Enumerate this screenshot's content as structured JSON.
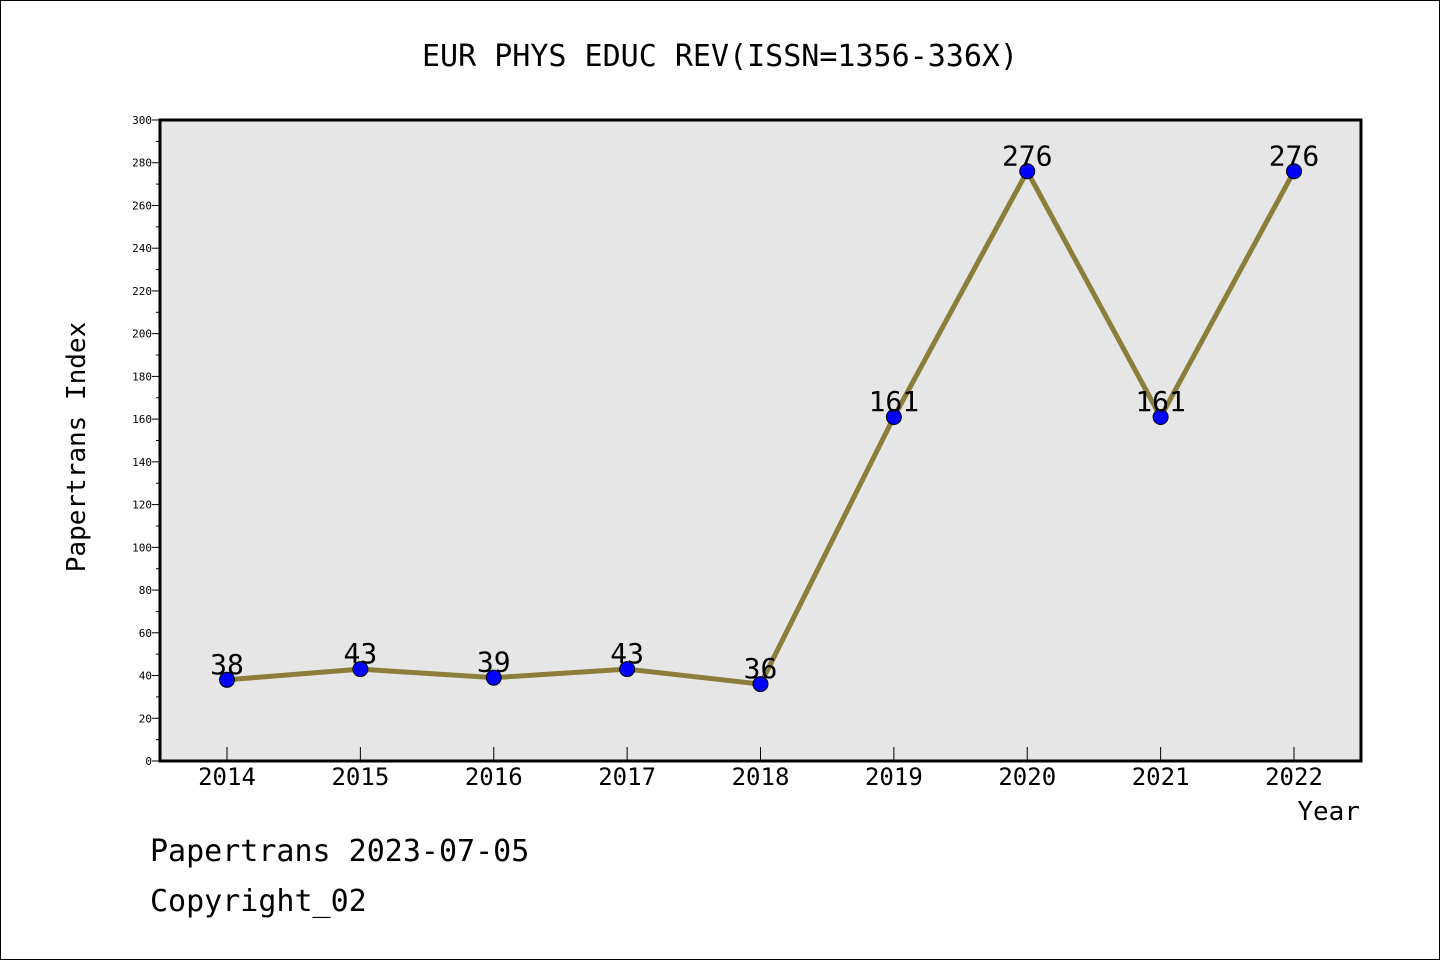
{
  "chart_data": {
    "type": "line",
    "title": "EUR PHYS EDUC REV(ISSN=1356-336X)",
    "xlabel": "Year",
    "ylabel": "Papertrans Index",
    "categories": [
      "2014",
      "2015",
      "2016",
      "2017",
      "2018",
      "2019",
      "2020",
      "2021",
      "2022"
    ],
    "series": [
      {
        "values": [
          38,
          43,
          39,
          43,
          36,
          161,
          276,
          161,
          276
        ]
      }
    ],
    "data_labels": [
      "38",
      "43",
      "39",
      "43",
      "36",
      "161",
      "276",
      "161",
      "276"
    ],
    "ylim": [
      0,
      300
    ],
    "y_ticks": [
      "0",
      "20",
      "40",
      "60",
      "80",
      "100",
      "120",
      "140",
      "160",
      "180",
      "200",
      "220",
      "240",
      "260",
      "280",
      "300"
    ],
    "grid": false,
    "colors": {
      "line": "#8B7D3A",
      "marker": "#0000FF",
      "plot_background": "#E6E6E6"
    }
  },
  "footer": {
    "line1": "Papertrans 2023-07-05",
    "line2": "Copyright_02"
  }
}
